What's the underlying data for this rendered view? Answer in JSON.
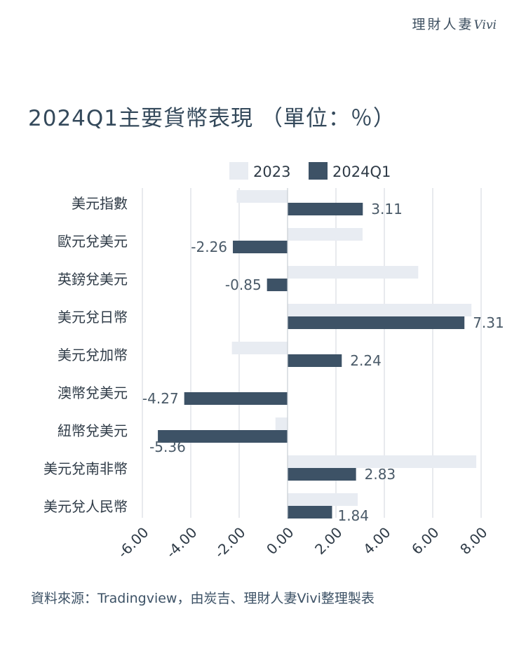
{
  "brand": {
    "name": "理財人妻",
    "script": "Vivi"
  },
  "colors": {
    "series_2023": "#e8ecf2",
    "series_2024": "#3d5266",
    "grid": "#d9dde2",
    "text": "#2f3b47",
    "label": "#4a5a68"
  },
  "chart_data": {
    "type": "bar",
    "orientation": "horizontal",
    "title": "2024Q1主要貨幣表現 （單位：％）",
    "categories": [
      "美元指數",
      "歐元兌美元",
      "英鎊兌美元",
      "美元兌日幣",
      "美元兌加幣",
      "澳幣兌美元",
      "紐幣兌美元",
      "美元兌南非幣",
      "美元兌人民幣"
    ],
    "series": [
      {
        "name": "2023",
        "values": [
          -2.1,
          3.1,
          5.4,
          7.6,
          -2.3,
          0.0,
          -0.5,
          7.8,
          2.9
        ]
      },
      {
        "name": "2024Q1",
        "values": [
          3.11,
          -2.26,
          -0.85,
          7.31,
          2.24,
          -4.27,
          -5.36,
          2.83,
          1.84
        ],
        "labels": [
          "3.11",
          "-2.26",
          "-0.85",
          "7.31",
          "2.24",
          "-4.27",
          "-5.36",
          "2.83",
          "1.84"
        ]
      }
    ],
    "xlim": [
      -6,
      8
    ],
    "xticks": [
      "-6.00",
      "-4.00",
      "-2.00",
      "0.00",
      "2.00",
      "4.00",
      "6.00",
      "8.00"
    ],
    "legend": "top",
    "grid": true
  },
  "source": "資料來源：Tradingview，由炭吉、理財人妻Vivi整理製表"
}
